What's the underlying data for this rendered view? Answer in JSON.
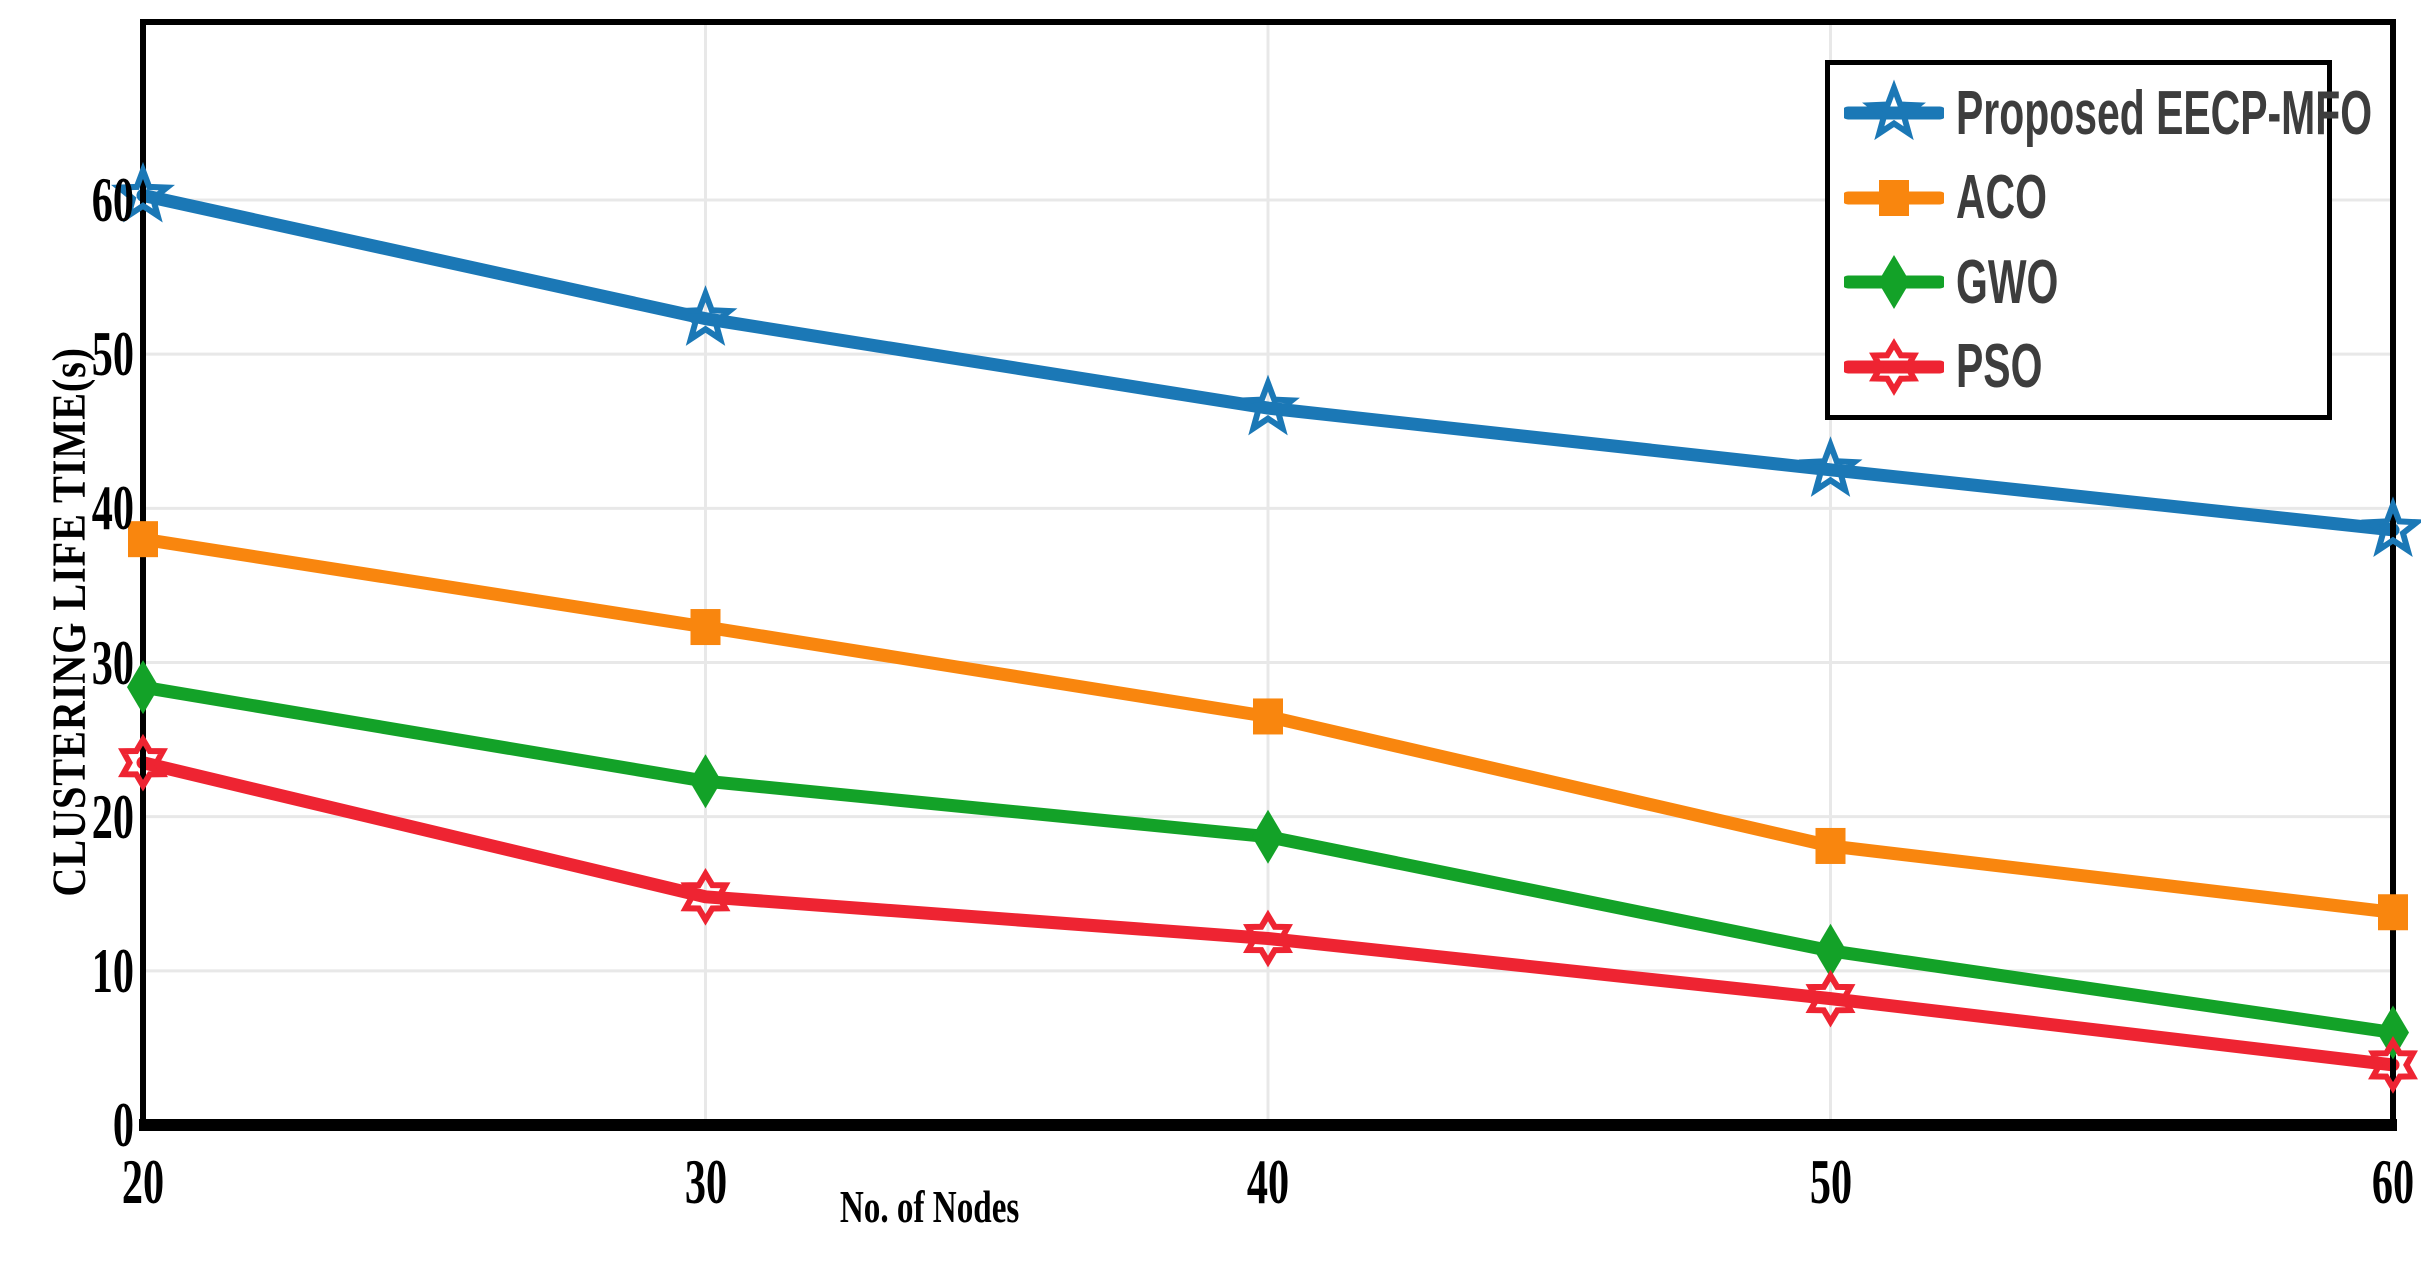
{
  "chart_data": {
    "type": "line",
    "title": "",
    "xlabel": "No. of Nodes",
    "ylabel": "CLUSTERING LIFE TIME(s)",
    "x": [
      20,
      30,
      40,
      50,
      60
    ],
    "x_tick_labels": [
      "20",
      "30",
      "40",
      "50",
      "60"
    ],
    "y_tick_labels": [
      "0",
      "10",
      "20",
      "30",
      "40",
      "50",
      "60"
    ],
    "y_ticks": [
      0,
      10,
      20,
      30,
      40,
      50,
      60
    ],
    "xlim": [
      20,
      60
    ],
    "ylim": [
      0,
      71.5
    ],
    "grid": "on",
    "legend_position": "top-right",
    "series": [
      {
        "name": "Proposed EECP-MFO",
        "color": "#1b78b6",
        "marker": "open-star-5",
        "values": [
          60.3,
          52.3,
          46.5,
          42.5,
          38.6
        ]
      },
      {
        "name": "ACO",
        "color": "#f9860e",
        "marker": "filled-square",
        "values": [
          38.0,
          32.3,
          26.5,
          18.1,
          13.8
        ]
      },
      {
        "name": "GWO",
        "color": "#13a228",
        "marker": "filled-diamond",
        "values": [
          28.4,
          22.3,
          18.7,
          11.3,
          6.0
        ]
      },
      {
        "name": "PSO",
        "color": "#ee2432",
        "marker": "open-star-6",
        "values": [
          23.5,
          14.8,
          12.1,
          8.2,
          3.9
        ]
      }
    ],
    "axis_text_color": "#000000",
    "legend_text_color": "#3d3d3d",
    "gridline_color": "#e8e8e8",
    "border_color": "#000000"
  }
}
